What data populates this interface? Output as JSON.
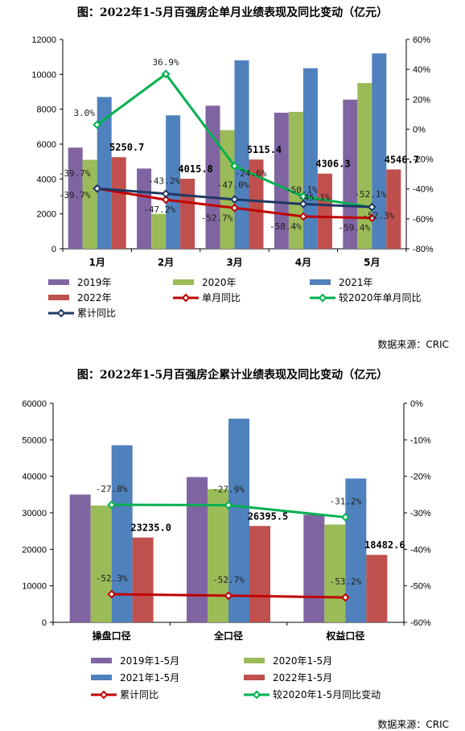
{
  "chart_data": [
    {
      "type": "bar",
      "title": "图：2022年1-5月百强房企单月业绩表现及同比变动（亿元）",
      "categories": [
        "1月",
        "2月",
        "3月",
        "4月",
        "5月"
      ],
      "ylim": [
        0,
        12000
      ],
      "y2lim": [
        -80,
        60
      ],
      "yticks": [
        "0",
        "2000",
        "4000",
        "6000",
        "8000",
        "10000",
        "12000"
      ],
      "y2ticks": [
        "-80%",
        "-60%",
        "-40%",
        "-20%",
        "0%",
        "20%",
        "40%",
        "60%"
      ],
      "series": [
        {
          "name": "2019年",
          "kind": "bar",
          "color": "#8064A2",
          "values": [
            5800,
            4600,
            8200,
            7800,
            8550
          ]
        },
        {
          "name": "2020年",
          "kind": "bar",
          "color": "#9BBB59",
          "values": [
            5100,
            2000,
            6800,
            7850,
            9500
          ]
        },
        {
          "name": "2021年",
          "kind": "bar",
          "color": "#4F81BD",
          "values": [
            8700,
            7650,
            10800,
            10350,
            11200
          ]
        },
        {
          "name": "2022年",
          "kind": "bar",
          "color": "#C0504D",
          "values": [
            5250.7,
            4015.8,
            5115.4,
            4306.3,
            4546.7
          ],
          "labels": [
            "5250.7",
            "4015.8",
            "5115.4",
            "4306.3",
            "4546.7"
          ]
        },
        {
          "name": "单月同比",
          "kind": "line",
          "axis": "right",
          "color": "#C00000",
          "values": [
            -39.7,
            -47.2,
            -52.7,
            -58.4,
            -59.4
          ],
          "labels": [
            "-39.7%",
            "-47.2%",
            "-52.7%",
            "-58.4%",
            "-59.4%"
          ]
        },
        {
          "name": "较2020年单月同比",
          "kind": "line",
          "axis": "right",
          "color": "#00B050",
          "values": [
            3.0,
            36.9,
            -24.6,
            -45.1,
            -52.3
          ],
          "labels": [
            "3.0%",
            "36.9%",
            "-24.6%",
            "-45.1%",
            "-52.3%"
          ]
        },
        {
          "name": "累计同比",
          "kind": "line",
          "axis": "right",
          "color": "#1F3864",
          "values": [
            -39.7,
            -43.2,
            -47.0,
            -50.1,
            -52.1
          ],
          "labels": [
            "-39.7%",
            "-43.2%",
            "-47.0%",
            "-50.1%",
            "-52.1%"
          ]
        }
      ],
      "source": "数据来源：CRIC"
    },
    {
      "type": "bar",
      "title": "图：2022年1-5月百强房企累计业绩表现及同比变动（亿元）",
      "categories": [
        "操盘口径",
        "全口径",
        "权益口径"
      ],
      "ylim": [
        0,
        60000
      ],
      "y2lim": [
        -60,
        0
      ],
      "yticks": [
        "0",
        "10000",
        "20000",
        "30000",
        "40000",
        "50000",
        "60000"
      ],
      "y2ticks": [
        "-60%",
        "-50%",
        "-40%",
        "-30%",
        "-20%",
        "-10%",
        "0%"
      ],
      "series": [
        {
          "name": "2019年1-5月",
          "kind": "bar",
          "color": "#8064A2",
          "values": [
            35000,
            39800,
            29500
          ]
        },
        {
          "name": "2020年1-5月",
          "kind": "bar",
          "color": "#9BBB59",
          "values": [
            32000,
            36500,
            26800
          ]
        },
        {
          "name": "2021年1-5月",
          "kind": "bar",
          "color": "#4F81BD",
          "values": [
            48500,
            55800,
            39400
          ]
        },
        {
          "name": "2022年1-5月",
          "kind": "bar",
          "color": "#C0504D",
          "values": [
            23235.0,
            26395.5,
            18482.6
          ],
          "labels": [
            "23235.0",
            "26395.5",
            "18482.6"
          ]
        },
        {
          "name": "累计同比",
          "kind": "line",
          "axis": "right",
          "color": "#C00000",
          "values": [
            -52.3,
            -52.7,
            -53.2
          ],
          "labels": [
            "-52.3%",
            "-52.7%",
            "-53.2%"
          ]
        },
        {
          "name": "较2020年1-5月同比变动",
          "kind": "line",
          "axis": "right",
          "color": "#00B050",
          "values": [
            -27.8,
            -27.9,
            -31.2
          ],
          "labels": [
            "-27.8%",
            "-27.9%",
            "-31.2%"
          ]
        }
      ],
      "source": "数据来源：CRIC"
    }
  ]
}
